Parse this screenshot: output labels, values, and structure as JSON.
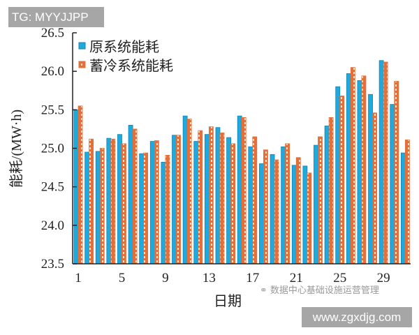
{
  "watermarks": {
    "top_left": "TG: MYYJJPP",
    "bottom_right": "www.zgxdjg.com",
    "wechat_account": "数据中心基础设施运营管理",
    "wechat_icon": "wechat-icon"
  },
  "colors": {
    "original": "#1fa9dc",
    "original_border": "#1583b0",
    "storage": "#e2703a",
    "axis": "#222222"
  },
  "chart_data": {
    "type": "bar",
    "title": "",
    "xlabel": "日期",
    "ylabel": "能耗/(MW·h)",
    "ylim": [
      23.5,
      26.5
    ],
    "yticks": [
      "23.5",
      "24.0",
      "24.5",
      "25.0",
      "25.5",
      "26.0",
      "26.5"
    ],
    "xtick_labels": [
      "1",
      "5",
      "9",
      "13",
      "17",
      "21",
      "25",
      "29"
    ],
    "grid": false,
    "legend_position": "upper-left",
    "categories": [
      1,
      2,
      3,
      4,
      5,
      6,
      7,
      8,
      9,
      10,
      11,
      12,
      13,
      14,
      15,
      16,
      17,
      18,
      19,
      20,
      21,
      22,
      23,
      24,
      25,
      26,
      27,
      28,
      29,
      30,
      31
    ],
    "series": [
      {
        "name": "原系统能耗",
        "values": [
          25.5,
          24.95,
          24.96,
          25.13,
          25.18,
          25.3,
          24.93,
          25.09,
          24.82,
          25.17,
          25.42,
          25.09,
          25.18,
          25.27,
          25.14,
          25.42,
          25.02,
          24.8,
          24.92,
          25.02,
          24.78,
          24.77,
          25.04,
          25.29,
          25.8,
          25.97,
          25.88,
          25.7,
          26.14,
          25.57,
          24.94
        ]
      },
      {
        "name": "蓄冷系统能耗",
        "values": [
          25.55,
          25.12,
          25.0,
          25.12,
          25.06,
          25.25,
          24.94,
          25.1,
          24.91,
          25.17,
          25.38,
          25.23,
          25.28,
          25.2,
          25.06,
          25.4,
          25.15,
          24.98,
          24.85,
          25.06,
          24.88,
          24.68,
          25.15,
          25.4,
          25.68,
          26.05,
          25.94,
          25.46,
          26.12,
          25.87,
          25.11
        ]
      }
    ]
  }
}
